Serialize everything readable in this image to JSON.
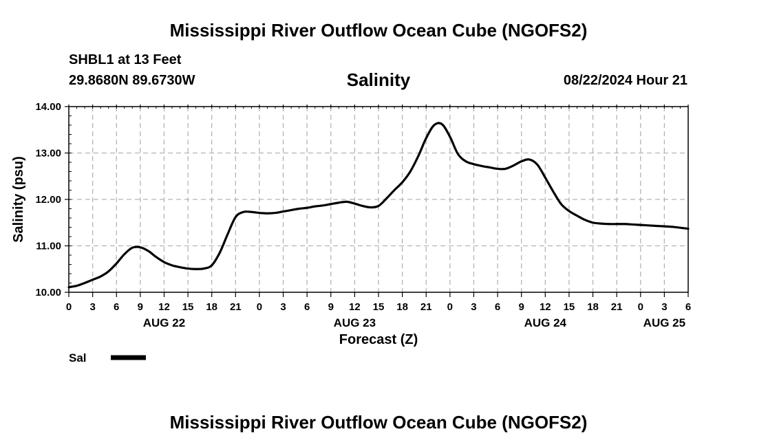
{
  "header": {
    "title": "Mississippi River Outflow Ocean Cube (NGOFS2)",
    "station": "SHBL1 at 13 Feet",
    "coordinates": "29.8680N  89.6730W",
    "subtitle": "Salinity",
    "datetime": "08/22/2024 Hour 21"
  },
  "footer": {
    "title": "Mississippi River Outflow Ocean Cube (NGOFS2)"
  },
  "chart_data": {
    "type": "line",
    "title": "Salinity",
    "xlabel": "Forecast (Z)",
    "ylabel": "Salinity (psu)",
    "ylim": [
      10.0,
      14.0
    ],
    "yticks": [
      "10.00",
      "11.00",
      "12.00",
      "13.00",
      "14.00"
    ],
    "xlim": [
      0,
      78
    ],
    "xtick_hours": [
      0,
      3,
      6,
      9,
      12,
      15,
      18,
      21,
      24,
      27,
      30,
      33,
      36,
      39,
      42,
      45,
      48,
      51,
      54,
      57,
      60,
      63,
      66,
      69,
      72,
      75,
      78
    ],
    "xtick_labels": [
      "0",
      "3",
      "6",
      "9",
      "12",
      "15",
      "18",
      "21",
      "0",
      "3",
      "6",
      "9",
      "12",
      "15",
      "18",
      "21",
      "0",
      "3",
      "6",
      "9",
      "12",
      "15",
      "18",
      "21",
      "0",
      "3",
      "6"
    ],
    "date_labels": [
      {
        "hour": 12,
        "label": "AUG 22"
      },
      {
        "hour": 36,
        "label": "AUG 23"
      },
      {
        "hour": 60,
        "label": "AUG 24"
      },
      {
        "hour": 75,
        "label": "AUG 25"
      }
    ],
    "grid": true,
    "legend": "bottom-left",
    "series": [
      {
        "name": "Sal",
        "color": "#000000",
        "x": [
          0,
          1,
          2,
          3,
          4,
          5,
          6,
          7,
          8,
          9,
          10,
          11,
          12,
          13,
          14,
          15,
          16,
          17,
          18,
          19,
          20,
          21,
          22,
          23,
          24,
          25,
          26,
          27,
          28,
          29,
          30,
          31,
          32,
          33,
          34,
          35,
          36,
          37,
          38,
          39,
          40,
          41,
          42,
          43,
          44,
          45,
          46,
          47,
          48,
          49,
          50,
          51,
          52,
          53,
          54,
          55,
          56,
          57,
          58,
          59,
          60,
          61,
          62,
          63,
          64,
          65,
          66,
          67,
          68,
          69,
          70,
          71,
          72,
          73,
          74,
          75,
          76,
          77,
          78
        ],
        "values": [
          10.11,
          10.14,
          10.2,
          10.27,
          10.34,
          10.45,
          10.62,
          10.82,
          10.96,
          10.97,
          10.89,
          10.76,
          10.65,
          10.58,
          10.54,
          10.51,
          10.5,
          10.51,
          10.58,
          10.85,
          11.25,
          11.62,
          11.73,
          11.73,
          11.71,
          11.7,
          11.71,
          11.74,
          11.77,
          11.8,
          11.82,
          11.85,
          11.87,
          11.9,
          11.93,
          11.95,
          11.91,
          11.86,
          11.83,
          11.86,
          12.02,
          12.2,
          12.37,
          12.6,
          12.93,
          13.32,
          13.6,
          13.62,
          13.35,
          12.98,
          12.82,
          12.76,
          12.72,
          12.69,
          12.66,
          12.66,
          12.73,
          12.82,
          12.86,
          12.75,
          12.47,
          12.17,
          11.9,
          11.75,
          11.65,
          11.56,
          11.5,
          11.48,
          11.47,
          11.47,
          11.47,
          11.46,
          11.45,
          11.44,
          11.43,
          11.42,
          11.41,
          11.39,
          11.37
        ]
      }
    ]
  }
}
